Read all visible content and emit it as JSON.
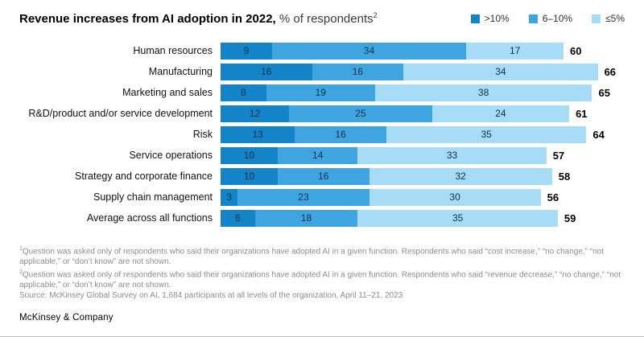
{
  "header": {
    "title_bold": "Revenue increases from AI adoption in 2022,",
    "title_regular": "% of respondents",
    "title_superscript": "2"
  },
  "legend": [
    {
      "label": ">10%",
      "color": "#1484c9"
    },
    {
      "label": "6–10%",
      "color": "#3fa5e0"
    },
    {
      "label": "≤5%",
      "color": "#a7dcf6"
    }
  ],
  "chart_data": {
    "type": "bar",
    "orientation": "horizontal",
    "stacked": true,
    "title": "Revenue increases from AI adoption in 2022, % of respondents",
    "categories": [
      "Human resources",
      "Manufacturing",
      "Marketing and sales",
      "R&D/product and/or service development",
      "Risk",
      "Service operations",
      "Strategy and corporate finance",
      "Supply chain management",
      "Average across all functions"
    ],
    "series": [
      {
        "name": ">10%",
        "color": "#1484c9",
        "values": [
          9,
          16,
          8,
          12,
          13,
          10,
          10,
          3,
          6
        ]
      },
      {
        "name": "6–10%",
        "color": "#3fa5e0",
        "values": [
          34,
          16,
          19,
          25,
          16,
          14,
          16,
          23,
          18
        ]
      },
      {
        "name": "≤5%",
        "color": "#a7dcf6",
        "values": [
          17,
          34,
          38,
          24,
          35,
          33,
          32,
          30,
          35
        ]
      }
    ],
    "totals": [
      60,
      66,
      65,
      61,
      64,
      57,
      58,
      56,
      59
    ],
    "xlim": [
      0,
      66
    ],
    "value_labels": "inside segments, totals bold at bar end",
    "grid": false,
    "legend_position": "top-right"
  },
  "footnotes": [
    {
      "marker": "1",
      "text": "Question was asked only of respondents who said their organizations have adopted AI in a given function. Respondents who said “cost increase,” “no change,” “not applicable,” or “don’t know” are not shown."
    },
    {
      "marker": "2",
      "text": "Question was asked only of respondents who said their organizations have adopted AI in a given function. Respondents who said “revenue decrease,” “no change,” “not applicable,” or “don’t know” are not shown."
    }
  ],
  "source": "Source: McKinsey Global Survey on AI, 1,684 participants at all levels of the organization, April 11–21, 2023",
  "footer": {
    "brand": "McKinsey & Company"
  }
}
